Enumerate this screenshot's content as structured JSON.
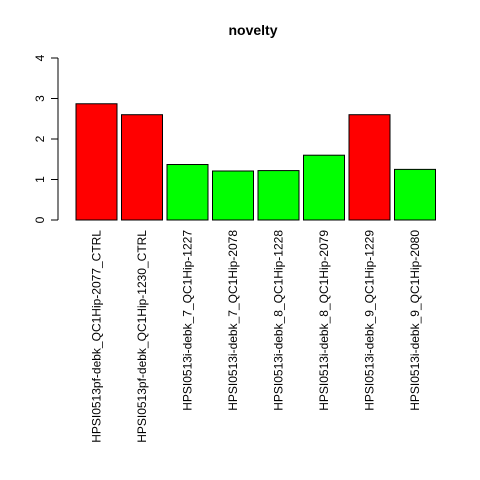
{
  "chart_data": {
    "type": "bar",
    "title": "novelty",
    "xlabel": "",
    "ylabel": "",
    "ylim": [
      0,
      4
    ],
    "yticks": [
      0,
      1,
      2,
      3,
      4
    ],
    "grid": false,
    "legend": "none",
    "categories": [
      "HPSI0513pf-debk_QC1Hip-2077_CTRL",
      "HPSI0513pf-debk_QC1Hip-1230_CTRL",
      "HPSI0513i-debk_7_QC1Hip-1227",
      "HPSI0513i-debk_7_QC1Hip-2078",
      "HPSI0513i-debk_8_QC1Hip-1228",
      "HPSI0513i-debk_8_QC1Hip-2079",
      "HPSI0513i-debk_9_QC1Hip-1229",
      "HPSI0513i-debk_9_QC1Hip-2080"
    ],
    "values": [
      2.87,
      2.6,
      1.37,
      1.21,
      1.22,
      1.6,
      2.6,
      1.25
    ],
    "colors": [
      "#FF0000",
      "#FF0000",
      "#00FF00",
      "#00FF00",
      "#00FF00",
      "#00FF00",
      "#FF0000",
      "#00FF00"
    ]
  }
}
